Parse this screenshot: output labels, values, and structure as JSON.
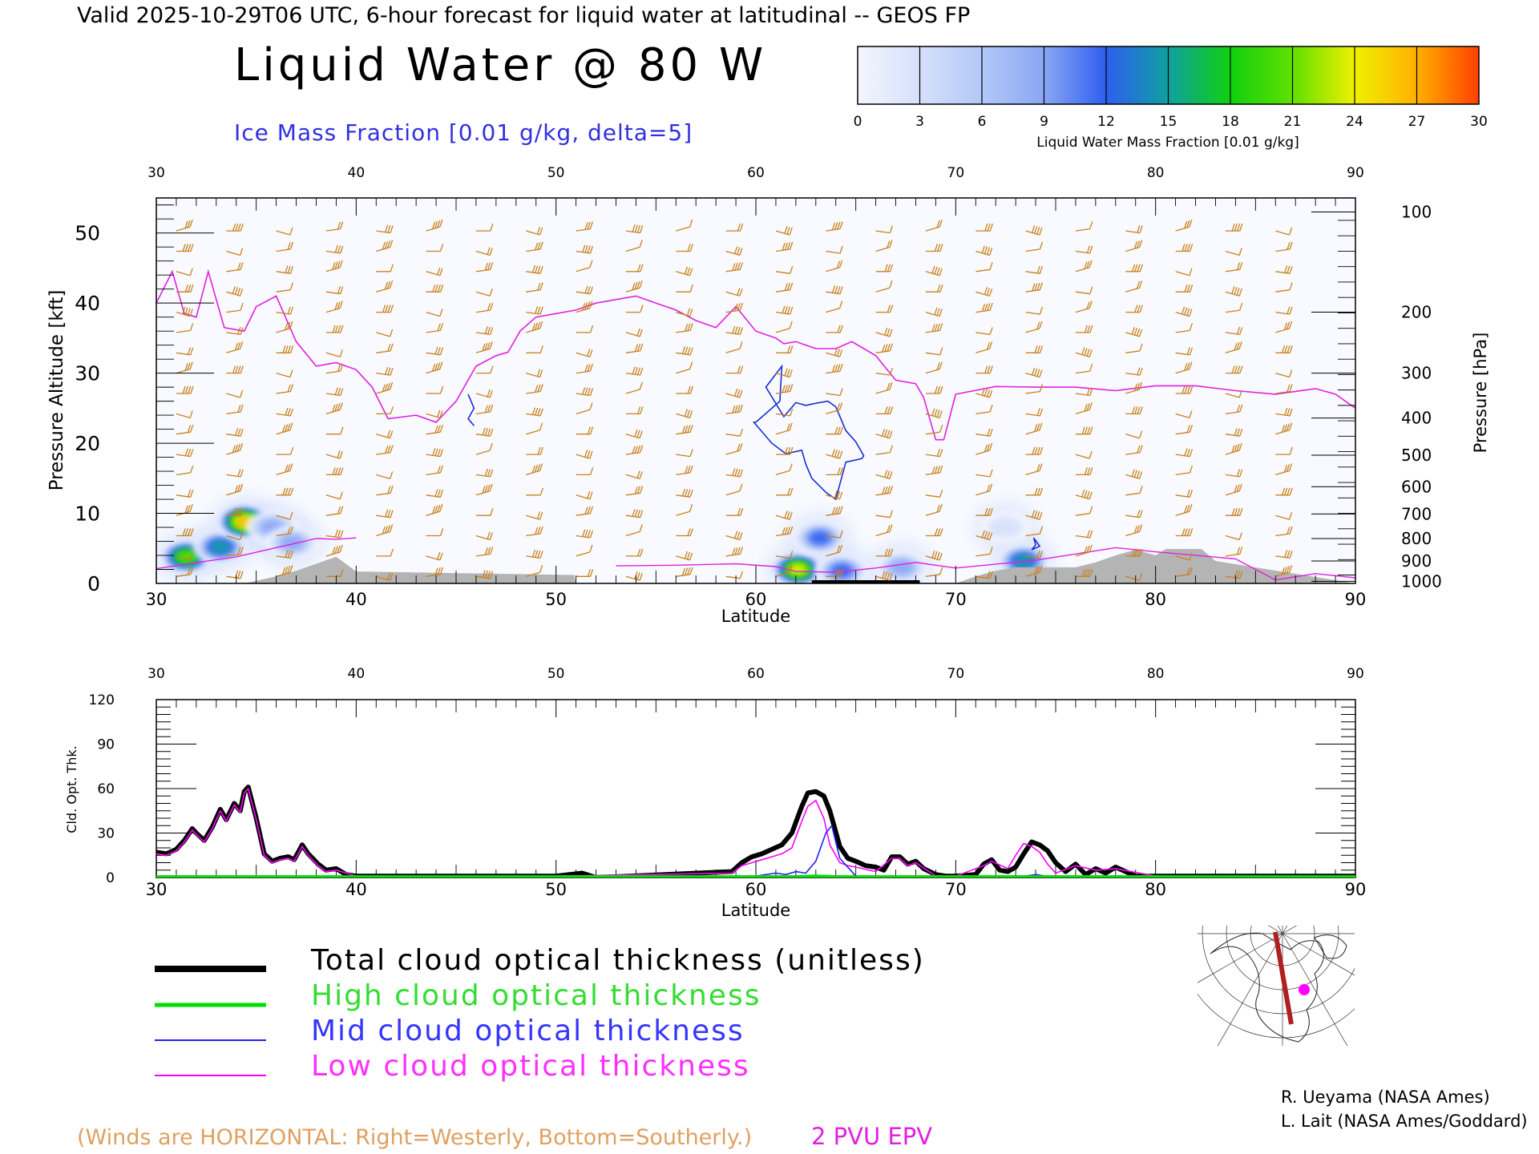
{
  "header": {
    "valid_line": "Valid 2025-10-29T06 UTC, 6-hour forecast for liquid water at latitudinal -- GEOS FP",
    "title": "Liquid Water @ 80 W",
    "subtitle": "Ice Mass Fraction [0.01 g/kg, delta=5]"
  },
  "colorbar": {
    "label": "Liquid Water Mass Fraction [0.01 g/kg]",
    "ticks": [
      "0",
      "3",
      "6",
      "9",
      "12",
      "15",
      "18",
      "21",
      "24",
      "27",
      "30"
    ],
    "colors": [
      "#f4f6fe",
      "#d6e0fb",
      "#b2c8f8",
      "#8aa6f4",
      "#2e5ef0",
      "#0fa0a0",
      "#10d010",
      "#60e000",
      "#f0f000",
      "#ffb000",
      "#ff4000"
    ]
  },
  "footer": {
    "winds_note": "(Winds are HORIZONTAL: Right=Westerly, Bottom=Southerly.)",
    "epv_label": "2 PVU EPV",
    "credit1": "R. Ueyama (NASA Ames)",
    "credit2": "L. Lait (NASA Ames/Goddard)"
  },
  "legend": [
    {
      "label": "Total cloud optical thickness (unitless)",
      "color": "#000000"
    },
    {
      "label": "High cloud optical thickness",
      "color": "#00e000"
    },
    {
      "label": "Mid cloud optical thickness",
      "color": "#2020ff"
    },
    {
      "label": "Low cloud optical thickness",
      "color": "#ff00ff"
    }
  ],
  "colors": {
    "barb": "#c8821c",
    "epv": "#e020e0",
    "ice_contour": "#1a2ed0",
    "terrain": "#b4b4b4",
    "winds_note": "#e0a060"
  },
  "chart_data": [
    {
      "type": "heatmap",
      "title": "Liquid Water @ 80 W",
      "xlabel": "Latitude",
      "ylabel": "Pressure Altitude [kft]",
      "ylabel_right": "Pressure [hPa]",
      "xlim": [
        30,
        90
      ],
      "ylim": [
        0,
        55
      ],
      "x_ticks": [
        "30",
        "40",
        "50",
        "60",
        "70",
        "80",
        "90"
      ],
      "y_ticks": [
        "0",
        "10",
        "20",
        "30",
        "40",
        "50"
      ],
      "pressure_ticks": [
        {
          "label": "100",
          "kft": 53
        },
        {
          "label": "200",
          "kft": 38.7
        },
        {
          "label": "300",
          "kft": 30
        },
        {
          "label": "400",
          "kft": 23.6
        },
        {
          "label": "500",
          "kft": 18.3
        },
        {
          "label": "600",
          "kft": 13.8
        },
        {
          "label": "700",
          "kft": 9.9
        },
        {
          "label": "800",
          "kft": 6.4
        },
        {
          "label": "900",
          "kft": 3.2
        },
        {
          "label": "1000",
          "kft": 0.3
        }
      ],
      "epv_2pvu": {
        "lat": [
          30,
          30.8,
          31.4,
          32,
          32.6,
          33.4,
          34.4,
          35,
          36,
          37,
          38,
          39,
          40,
          40.8,
          41.6,
          43,
          44,
          45,
          46,
          47,
          47.6,
          48.2,
          49,
          50,
          51,
          52,
          53,
          54,
          55,
          56,
          57,
          58,
          59,
          60,
          61,
          61.4,
          62,
          63,
          64,
          64.8,
          66,
          67,
          68,
          68.4,
          69,
          69.4,
          70,
          72,
          74,
          76,
          78,
          80,
          82,
          84,
          86,
          88,
          89,
          90
        ],
        "kft": [
          40,
          44.5,
          38.5,
          38,
          44.5,
          36.5,
          36,
          39.5,
          41,
          34.5,
          31,
          31.5,
          30.5,
          28,
          23.5,
          24,
          23,
          26,
          31,
          32.5,
          33,
          36,
          38,
          38.5,
          39,
          40,
          40.5,
          41,
          40,
          39,
          37.5,
          36.5,
          39.5,
          36,
          35,
          34.2,
          34.5,
          33.5,
          33.5,
          34.5,
          32.5,
          29,
          28.5,
          26.5,
          20.5,
          20.5,
          27,
          28.1,
          28,
          28,
          27.5,
          28.2,
          28.2,
          27.5,
          27,
          27.8,
          27,
          25
        ]
      },
      "terrain": {
        "lat": [
          30,
          34.4,
          36,
          37,
          38,
          39,
          40,
          50.9,
          51,
          70,
          71,
          72,
          73,
          76,
          77,
          78,
          79,
          80,
          80.5,
          82.3,
          83,
          90
        ],
        "kft": [
          0,
          0,
          1,
          1.8,
          2.8,
          3.8,
          1.7,
          1.2,
          0,
          0,
          1,
          1.8,
          2.3,
          2.3,
          3,
          4,
          4.8,
          4,
          4.9,
          4.9,
          3.2,
          0
        ]
      },
      "ice_contours": [
        {
          "lat": [
            45.6,
            45.9,
            45.6,
            45.9,
            45.6
          ],
          "kft": [
            27,
            25,
            23.5,
            22.5,
            23.5
          ]
        },
        {
          "lat": [
            60,
            61.2,
            61.3,
            60.5,
            61.4,
            62,
            62.5,
            63,
            63.6,
            64,
            64.5,
            65,
            65.4,
            65.3,
            64.5,
            64,
            63.5,
            62.8,
            62.5,
            62.3,
            61.5,
            60.8,
            59.9,
            60
          ],
          "kft": [
            23,
            26,
            31,
            28,
            23.8,
            25.8,
            25.4,
            25.7,
            26,
            25.2,
            21.8,
            20.2,
            18.2,
            17.8,
            17.3,
            12,
            13,
            15,
            17,
            19,
            18.5,
            20,
            23,
            23
          ]
        },
        {
          "lat": [
            73.9,
            74,
            73.8,
            74.2,
            73.9
          ],
          "kft": [
            6.5,
            5.5,
            4.8,
            5.3,
            6.5
          ]
        }
      ],
      "liquid_blobs": [
        {
          "lat": 31.5,
          "kft": 3.8,
          "value": 21
        },
        {
          "lat": 33.2,
          "kft": 5.2,
          "value": 16
        },
        {
          "lat": 34.4,
          "kft": 8.8,
          "value": 27
        },
        {
          "lat": 35.8,
          "kft": 8.0,
          "value": 8
        },
        {
          "lat": 36.8,
          "kft": 5.8,
          "value": 10
        },
        {
          "lat": 62.1,
          "kft": 2.0,
          "value": 24
        },
        {
          "lat": 63.2,
          "kft": 6.5,
          "value": 13
        },
        {
          "lat": 64.3,
          "kft": 1.8,
          "value": 12
        },
        {
          "lat": 67.3,
          "kft": 2.3,
          "value": 8
        },
        {
          "lat": 73.4,
          "kft": 3.2,
          "value": 14
        },
        {
          "lat": 72.5,
          "kft": 8.0,
          "value": 4
        }
      ]
    },
    {
      "type": "line",
      "ylabel": "Cld. Opt. Thk.",
      "xlabel": "Latitude",
      "xlim": [
        30,
        90
      ],
      "ylim": [
        0,
        120
      ],
      "x_ticks": [
        "30",
        "40",
        "50",
        "60",
        "70",
        "80",
        "90"
      ],
      "y_ticks": [
        "0",
        "30",
        "60",
        "90",
        "120"
      ],
      "series": [
        {
          "name": "Total cloud optical thickness (unitless)",
          "x": [
            30,
            30.5,
            31,
            31.4,
            31.8,
            32,
            32.4,
            32.8,
            33.2,
            33.5,
            33.9,
            34.2,
            34.4,
            34.6,
            35,
            35.4,
            35.8,
            36.2,
            36.6,
            36.9,
            37.3,
            37.6,
            38.1,
            38.5,
            39,
            39.5,
            40,
            50,
            51.3,
            52,
            58.8,
            59.3,
            59.8,
            60.3,
            60.8,
            61.3,
            61.8,
            62.3,
            62.6,
            63,
            63.4,
            63.7,
            64.2,
            64.6,
            65,
            65.5,
            66,
            66.4,
            66.8,
            67.2,
            67.6,
            68,
            68.4,
            69,
            69.5,
            70,
            71,
            71.4,
            71.8,
            72.2,
            72.6,
            73,
            73.4,
            73.8,
            74.2,
            74.6,
            75,
            75.5,
            76,
            76.5,
            77,
            77.5,
            78,
            79,
            80,
            90
          ],
          "y": [
            17,
            16,
            19,
            25,
            33,
            30,
            25,
            34,
            46,
            39,
            50,
            45,
            58,
            61,
            40,
            16,
            11,
            13,
            14,
            12,
            22,
            16,
            9,
            5,
            6,
            2,
            1,
            1,
            3,
            0,
            4,
            10,
            14,
            16,
            19,
            22,
            30,
            48,
            57,
            58,
            55,
            45,
            21,
            13,
            11,
            8,
            7,
            5,
            14,
            14,
            9,
            11,
            6,
            2,
            1,
            1,
            2,
            9,
            12,
            5,
            4,
            7,
            16,
            24,
            22,
            18,
            10,
            4,
            9,
            2,
            6,
            3,
            7,
            1,
            1,
            1
          ]
        },
        {
          "name": "Low cloud optical thickness",
          "x": [
            30,
            30.5,
            31,
            31.4,
            31.8,
            32,
            32.4,
            32.8,
            33.2,
            33.5,
            33.9,
            34.2,
            34.4,
            34.6,
            35,
            35.4,
            35.8,
            36.2,
            36.6,
            36.9,
            37.3,
            37.6,
            38.1,
            38.5,
            39,
            40,
            50,
            58.8,
            59.3,
            59.8,
            60.3,
            60.8,
            61.3,
            61.8,
            62.3,
            62.6,
            63,
            63.4,
            63.7,
            64.2,
            64.6,
            65,
            66,
            66.8,
            67.2,
            67.6,
            68,
            69,
            70,
            71.4,
            71.8,
            72.6,
            73,
            73.4,
            73.8,
            74.2,
            74.6,
            75,
            76,
            77,
            78,
            80,
            90
          ],
          "y": [
            16,
            15,
            18,
            24,
            32,
            29,
            24,
            33,
            45,
            38,
            49,
            44,
            57,
            60,
            39,
            15,
            10,
            12,
            13,
            11,
            21,
            15,
            8,
            4,
            5,
            1,
            1,
            3,
            8,
            10,
            12,
            14,
            16,
            20,
            38,
            48,
            52,
            40,
            22,
            10,
            8,
            7,
            4,
            13,
            13,
            8,
            10,
            1,
            1,
            8,
            11,
            6,
            15,
            23,
            21,
            17,
            9,
            3,
            8,
            5,
            6,
            1,
            1
          ]
        },
        {
          "name": "Mid cloud optical thickness",
          "x": [
            30,
            59,
            60,
            61,
            61.5,
            62,
            62.5,
            63,
            63.5,
            63.8,
            64.2,
            65,
            70,
            73,
            74,
            75,
            90
          ],
          "y": [
            0,
            0,
            1,
            3,
            2,
            4,
            3,
            11,
            30,
            35,
            13,
            1,
            0,
            0,
            2,
            0,
            0
          ]
        },
        {
          "name": "High cloud optical thickness",
          "x": [
            30,
            62,
            63,
            64,
            90
          ],
          "y": [
            0.5,
            0.5,
            1,
            0.5,
            0.5
          ]
        }
      ]
    }
  ]
}
